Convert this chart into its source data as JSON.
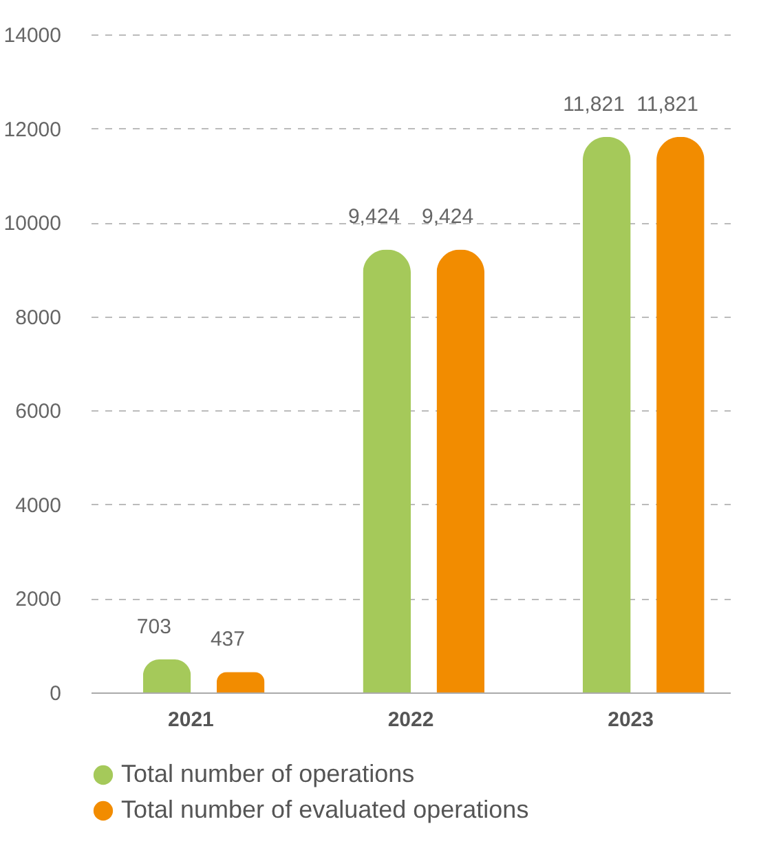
{
  "chart_data": {
    "type": "bar",
    "categories": [
      "2021",
      "2022",
      "2023"
    ],
    "series": [
      {
        "name": "Total number of operations",
        "color": "#a5c95a",
        "values": [
          703,
          9424,
          11821
        ],
        "value_labels": [
          "703",
          "9,424",
          "11,821"
        ]
      },
      {
        "name": "Total number of evaluated operations",
        "color": "#f28c00",
        "values": [
          437,
          9424,
          11821
        ],
        "value_labels": [
          "437",
          "9,424",
          "11,821"
        ]
      }
    ],
    "ylim": [
      0,
      14000
    ],
    "yticks": [
      0,
      2000,
      4000,
      6000,
      8000,
      10000,
      12000,
      14000
    ],
    "grid": "y",
    "legend": "bottom"
  }
}
